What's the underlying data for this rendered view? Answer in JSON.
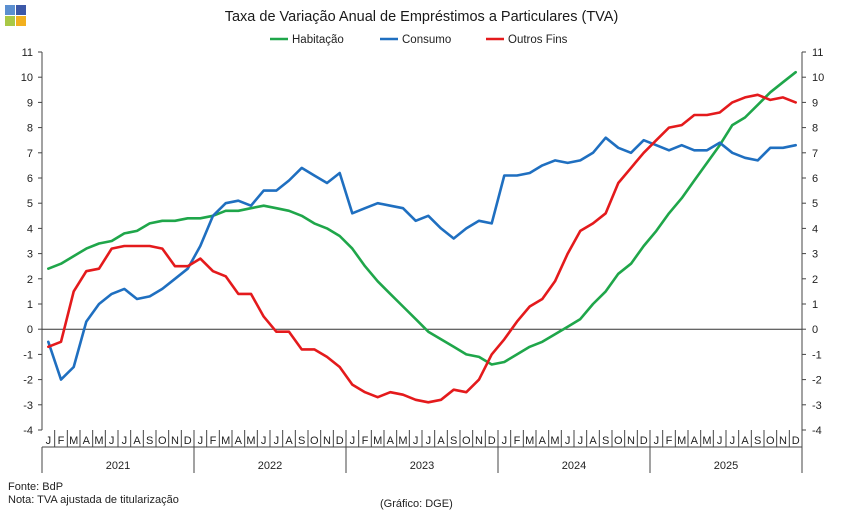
{
  "chart_data": {
    "type": "line",
    "title": "Taxa de Variação Anual de Empréstimos  a Particulares (TVA)",
    "ylim": [
      -4,
      11
    ],
    "y_ticks": [
      -4,
      -3,
      -2,
      -1,
      0,
      1,
      2,
      3,
      4,
      5,
      6,
      7,
      8,
      9,
      10,
      11
    ],
    "month_labels": [
      "J",
      "F",
      "M",
      "A",
      "M",
      "J",
      "J",
      "A",
      "S",
      "O",
      "N",
      "D"
    ],
    "years": [
      "2021",
      "2022",
      "2023",
      "2024",
      "2025"
    ],
    "legend_position": "top-center",
    "series": [
      {
        "name": "Habitação",
        "color": "#1fa64a",
        "values": [
          2.4,
          2.6,
          2.9,
          3.2,
          3.4,
          3.5,
          3.8,
          3.9,
          4.2,
          4.3,
          4.3,
          4.4,
          4.4,
          4.5,
          4.7,
          4.7,
          4.8,
          4.9,
          4.8,
          4.7,
          4.5,
          4.2,
          4.0,
          3.7,
          3.2,
          2.5,
          1.9,
          1.4,
          0.9,
          0.4,
          -0.1,
          -0.4,
          -0.7,
          -1.0,
          -1.1,
          -1.4,
          -1.3,
          -1.0,
          -0.7,
          -0.5,
          -0.2,
          0.1,
          0.4,
          1.0,
          1.5,
          2.2,
          2.6,
          3.3,
          3.9,
          4.6,
          5.2,
          5.9,
          6.6,
          7.3,
          8.1,
          8.4,
          8.9,
          9.4,
          9.8,
          10.2
        ]
      },
      {
        "name": "Consumo",
        "color": "#1f6fc0",
        "values": [
          -0.5,
          -2.0,
          -1.5,
          0.3,
          1.0,
          1.4,
          1.6,
          1.2,
          1.3,
          1.6,
          2.0,
          2.4,
          3.3,
          4.5,
          5.0,
          5.1,
          4.9,
          5.5,
          5.5,
          5.9,
          6.4,
          6.1,
          5.8,
          6.2,
          4.6,
          4.8,
          5.0,
          4.9,
          4.8,
          4.3,
          4.5,
          4.0,
          3.6,
          4.0,
          4.3,
          4.2,
          6.1,
          6.1,
          6.2,
          6.5,
          6.7,
          6.6,
          6.7,
          7.0,
          7.6,
          7.2,
          7.0,
          7.5,
          7.3,
          7.1,
          7.3,
          7.1,
          7.1,
          7.4,
          7.0,
          6.8,
          6.7,
          7.2,
          7.2,
          7.3
        ]
      },
      {
        "name": "Outros Fins",
        "color": "#e41a1c",
        "values": [
          -0.7,
          -0.5,
          1.5,
          2.3,
          2.4,
          3.2,
          3.3,
          3.3,
          3.3,
          3.2,
          2.5,
          2.5,
          2.8,
          2.3,
          2.1,
          1.4,
          1.4,
          0.5,
          -0.1,
          -0.1,
          -0.8,
          -0.8,
          -1.1,
          -1.5,
          -2.2,
          -2.5,
          -2.7,
          -2.5,
          -2.6,
          -2.8,
          -2.9,
          -2.8,
          -2.4,
          -2.5,
          -2.0,
          -1.0,
          -0.4,
          0.3,
          0.9,
          1.2,
          1.9,
          3.0,
          3.9,
          4.2,
          4.6,
          5.8,
          6.4,
          7.0,
          7.5,
          8.0,
          8.1,
          8.5,
          8.5,
          8.6,
          9.0,
          9.2,
          9.3,
          9.1,
          9.2,
          9.0
        ]
      }
    ]
  },
  "logo_colors": [
    "#5b8fd0",
    "#3c58a8",
    "#a9c846",
    "#f2b01e"
  ],
  "footer": {
    "source": "Fonte: BdP",
    "note": "Nota: TVA  ajustada  de titularização",
    "credit": "(Gráfico: DGE)"
  }
}
